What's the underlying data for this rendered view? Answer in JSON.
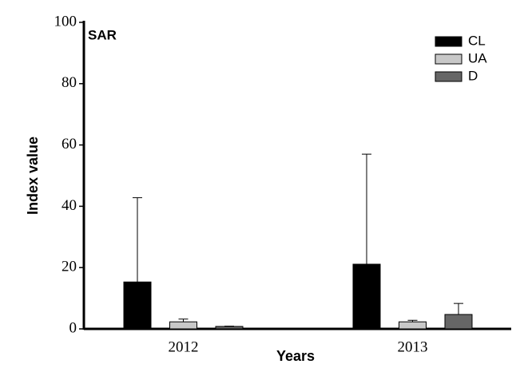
{
  "chart_data": {
    "type": "bar",
    "annotation": "SAR",
    "xlabel": "Years",
    "ylabel": "Index value",
    "categories": [
      "2012",
      "2013"
    ],
    "series": [
      {
        "name": "CL",
        "color": "#000000",
        "values": [
          15.3,
          21.1
        ],
        "errors": [
          27.5,
          35.9
        ]
      },
      {
        "name": "UA",
        "color": "#c8c8c8",
        "values": [
          2.3,
          2.3
        ],
        "errors": [
          0.9,
          0.5
        ]
      },
      {
        "name": "D",
        "color": "#666666",
        "values": [
          0.8,
          4.7
        ],
        "errors": [
          0.1,
          3.6
        ]
      }
    ],
    "ylim": [
      0,
      100
    ],
    "yticks": [
      0,
      20,
      40,
      60,
      80,
      100
    ],
    "legend": "upper right"
  }
}
